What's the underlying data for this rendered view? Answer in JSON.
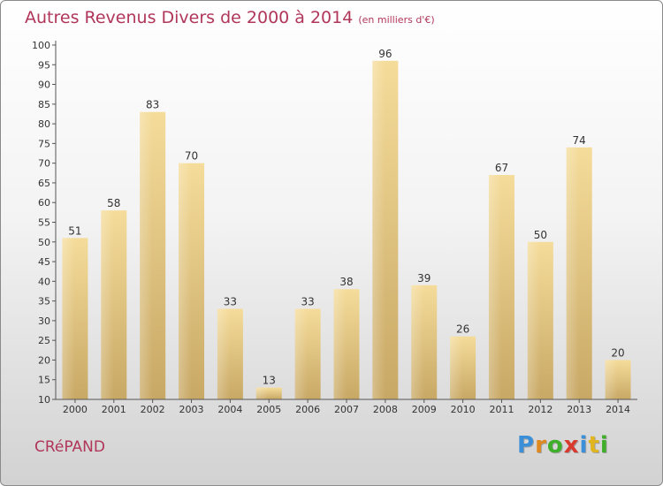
{
  "header": {
    "title": "Autres Revenus Divers de 2000 à 2014",
    "subtitle": "(en milliers d'€)"
  },
  "footer": {
    "commune": "CRéPAND",
    "logo_letters": [
      "P",
      "r",
      "o",
      "x",
      "i",
      "t",
      "i"
    ],
    "logo_colors": [
      "#3b8fd9",
      "#e08a1e",
      "#3fae2a",
      "#d93a2f",
      "#3b8fd9",
      "#e0b51e",
      "#3fae2a"
    ]
  },
  "colors": {
    "title": "#b0365a",
    "bar_light": "#f5dc9a",
    "bar_dark": "#c8a865",
    "axis": "#555555"
  },
  "chart_data": {
    "type": "bar",
    "title": "Autres Revenus Divers de 2000 à 2014",
    "xlabel": "",
    "ylabel": "",
    "categories": [
      "2000",
      "2001",
      "2002",
      "2003",
      "2004",
      "2005",
      "2006",
      "2007",
      "2008",
      "2009",
      "2010",
      "2011",
      "2012",
      "2013",
      "2014"
    ],
    "values": [
      51,
      58,
      83,
      70,
      33,
      13,
      33,
      38,
      96,
      39,
      26,
      67,
      50,
      74,
      20
    ],
    "ylim": [
      10,
      100
    ],
    "yticks": [
      10,
      15,
      20,
      25,
      30,
      35,
      40,
      45,
      50,
      55,
      60,
      65,
      70,
      75,
      80,
      85,
      90,
      95,
      100
    ],
    "grid": false,
    "legend": "none"
  }
}
